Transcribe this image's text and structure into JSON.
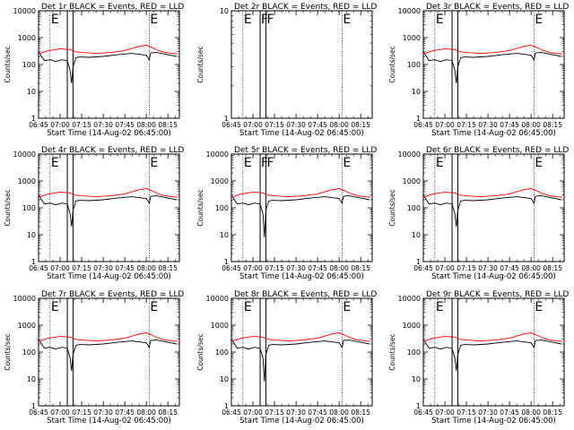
{
  "chart_data": [
    {
      "type": "line",
      "title": "Det 1r BLACK = Events, RED = LLD",
      "xlabel": "Start Time (14-Aug-02 06:45:00)",
      "ylabel": "Counts/sec",
      "yscale": "log",
      "ylim": [
        1,
        10000
      ],
      "xlim": [
        "06:45",
        "08:23"
      ],
      "yticks": [
        "1",
        "10",
        "100",
        "1000",
        "10000"
      ],
      "xticks": [
        "06:45",
        "07:00",
        "07:15",
        "07:30",
        "07:45",
        "08:00",
        "08:15"
      ],
      "has_data": true,
      "dip_depth": 20,
      "markers": [
        {
          "time": "06:53",
          "label": "E"
        },
        {
          "time": "07:05",
          "label": ""
        },
        {
          "time": "07:09",
          "label": ""
        },
        {
          "time": "08:02",
          "label": "E"
        }
      ]
    },
    {
      "type": "line",
      "title": "Det 2r BLACK = Events, RED = LLD",
      "xlabel": "Start Time (14-Aug-02 06:45:00)",
      "ylabel": "Counts/sec",
      "yscale": "log",
      "ylim": [
        1,
        10
      ],
      "xlim": [
        "06:45",
        "08:23"
      ],
      "yticks": [
        "1",
        "10"
      ],
      "xticks": [
        "06:45",
        "07:00",
        "07:15",
        "07:30",
        "07:45",
        "08:00",
        "08:15"
      ],
      "has_data": false,
      "dip_depth": 0,
      "markers": [
        {
          "time": "06:53",
          "label": "E"
        },
        {
          "time": "07:05",
          "label": "F"
        },
        {
          "time": "07:09",
          "label": "F"
        },
        {
          "time": "08:02",
          "label": "E"
        }
      ]
    },
    {
      "type": "line",
      "title": "Det 3r BLACK = Events, RED = LLD",
      "xlabel": "Start Time (14-Aug-02 06:45:00)",
      "ylabel": "Counts/sec",
      "yscale": "log",
      "ylim": [
        1,
        10000
      ],
      "xlim": [
        "06:45",
        "08:23"
      ],
      "yticks": [
        "1",
        "10",
        "100",
        "1000",
        "10000"
      ],
      "xticks": [
        "06:45",
        "07:00",
        "07:15",
        "07:30",
        "07:45",
        "08:00",
        "08:15"
      ],
      "has_data": true,
      "dip_depth": 20,
      "markers": [
        {
          "time": "06:53",
          "label": "E"
        },
        {
          "time": "07:05",
          "label": ""
        },
        {
          "time": "07:09",
          "label": ""
        },
        {
          "time": "08:02",
          "label": "E"
        }
      ]
    },
    {
      "type": "line",
      "title": "Det 4r BLACK = Events, RED = LLD",
      "xlabel": "Start Time (14-Aug-02 06:45:00)",
      "ylabel": "Counts/sec",
      "yscale": "log",
      "ylim": [
        1,
        10000
      ],
      "xlim": [
        "06:45",
        "08:23"
      ],
      "yticks": [
        "1",
        "10",
        "100",
        "1000",
        "10000"
      ],
      "xticks": [
        "06:45",
        "07:00",
        "07:15",
        "07:30",
        "07:45",
        "08:00",
        "08:15"
      ],
      "has_data": true,
      "dip_depth": 20,
      "markers": [
        {
          "time": "06:53",
          "label": "E"
        },
        {
          "time": "07:05",
          "label": ""
        },
        {
          "time": "07:09",
          "label": ""
        },
        {
          "time": "08:02",
          "label": "E"
        }
      ]
    },
    {
      "type": "line",
      "title": "Det 5r BLACK = Events, RED = LLD",
      "xlabel": "Start Time (14-Aug-02 06:45:00)",
      "ylabel": "Counts/sec",
      "yscale": "log",
      "ylim": [
        1,
        10000
      ],
      "xlim": [
        "06:45",
        "08:23"
      ],
      "yticks": [
        "1",
        "10",
        "100",
        "1000",
        "10000"
      ],
      "xticks": [
        "06:45",
        "07:00",
        "07:15",
        "07:30",
        "07:45",
        "08:00",
        "08:15"
      ],
      "has_data": true,
      "dip_depth": 8,
      "markers": [
        {
          "time": "06:53",
          "label": "E"
        },
        {
          "time": "07:05",
          "label": "F"
        },
        {
          "time": "07:09",
          "label": "F"
        },
        {
          "time": "08:02",
          "label": "E"
        }
      ]
    },
    {
      "type": "line",
      "title": "Det 6r BLACK = Events, RED = LLD",
      "xlabel": "Start Time (14-Aug-02 06:45:00)",
      "ylabel": "Counts/sec",
      "yscale": "log",
      "ylim": [
        1,
        10000
      ],
      "xlim": [
        "06:45",
        "08:23"
      ],
      "yticks": [
        "1",
        "10",
        "100",
        "1000",
        "10000"
      ],
      "xticks": [
        "06:45",
        "07:00",
        "07:15",
        "07:30",
        "07:45",
        "08:00",
        "08:15"
      ],
      "has_data": true,
      "dip_depth": 20,
      "markers": [
        {
          "time": "06:53",
          "label": "E"
        },
        {
          "time": "07:05",
          "label": ""
        },
        {
          "time": "07:09",
          "label": ""
        },
        {
          "time": "08:02",
          "label": "E"
        }
      ]
    },
    {
      "type": "line",
      "title": "Det 7r BLACK = Events, RED = LLD",
      "xlabel": "Start Time (14-Aug-02 06:45:00)",
      "ylabel": "Counts/sec",
      "yscale": "log",
      "ylim": [
        1,
        10000
      ],
      "xlim": [
        "06:45",
        "08:23"
      ],
      "yticks": [
        "1",
        "10",
        "100",
        "1000",
        "10000"
      ],
      "xticks": [
        "06:45",
        "07:00",
        "07:15",
        "07:30",
        "07:45",
        "08:00",
        "08:15"
      ],
      "has_data": true,
      "dip_depth": 20,
      "markers": [
        {
          "time": "06:53",
          "label": "E"
        },
        {
          "time": "07:05",
          "label": ""
        },
        {
          "time": "07:09",
          "label": ""
        },
        {
          "time": "08:02",
          "label": "E"
        }
      ]
    },
    {
      "type": "line",
      "title": "Det 8r BLACK = Events, RED = LLD",
      "xlabel": "Start Time (14-Aug-02 06:45:00)",
      "ylabel": "Counts/sec",
      "yscale": "log",
      "ylim": [
        1,
        10000
      ],
      "xlim": [
        "06:45",
        "08:23"
      ],
      "yticks": [
        "1",
        "10",
        "100",
        "1000",
        "10000"
      ],
      "xticks": [
        "06:45",
        "07:00",
        "07:15",
        "07:30",
        "07:45",
        "08:00",
        "08:15"
      ],
      "has_data": true,
      "dip_depth": 8,
      "markers": [
        {
          "time": "06:53",
          "label": "E"
        },
        {
          "time": "07:05",
          "label": ""
        },
        {
          "time": "07:09",
          "label": ""
        },
        {
          "time": "08:02",
          "label": "E"
        }
      ]
    },
    {
      "type": "line",
      "title": "Det 9r BLACK = Events, RED = LLD",
      "xlabel": "Start Time (14-Aug-02 06:45:00)",
      "ylabel": "Counts/sec",
      "yscale": "log",
      "ylim": [
        1,
        10000
      ],
      "xlim": [
        "06:45",
        "08:23"
      ],
      "yticks": [
        "1",
        "10",
        "100",
        "1000",
        "10000"
      ],
      "xticks": [
        "06:45",
        "07:00",
        "07:15",
        "07:30",
        "07:45",
        "08:00",
        "08:15"
      ],
      "has_data": true,
      "dip_depth": 20,
      "markers": [
        {
          "time": "06:53",
          "label": "E"
        },
        {
          "time": "07:05",
          "label": ""
        },
        {
          "time": "07:09",
          "label": ""
        },
        {
          "time": "08:02",
          "label": "E"
        }
      ]
    }
  ],
  "series_templates": {
    "events": {
      "color": "#000000",
      "x": [
        "06:45",
        "06:49",
        "06:53",
        "06:57",
        "07:01",
        "07:05",
        "07:07",
        "07:08",
        "07:09",
        "07:11",
        "07:14",
        "07:20",
        "07:30",
        "07:40",
        "07:50",
        "07:55",
        "08:00",
        "08:02",
        "08:03",
        "08:07",
        "08:12",
        "08:17",
        "08:21"
      ],
      "y": [
        300,
        140,
        150,
        130,
        150,
        140,
        60,
        "DIP",
        80,
        180,
        190,
        185,
        200,
        230,
        260,
        240,
        220,
        150,
        270,
        280,
        250,
        220,
        200
      ]
    },
    "lld": {
      "color": "#ff0000",
      "x": [
        "06:45",
        "06:52",
        "07:00",
        "07:07",
        "07:10",
        "07:15",
        "07:25",
        "07:35",
        "07:45",
        "07:55",
        "08:00",
        "08:03",
        "08:08",
        "08:13",
        "08:18",
        "08:22"
      ],
      "y": [
        250,
        330,
        380,
        360,
        300,
        280,
        260,
        280,
        330,
        470,
        520,
        450,
        340,
        280,
        260,
        250
      ]
    }
  }
}
